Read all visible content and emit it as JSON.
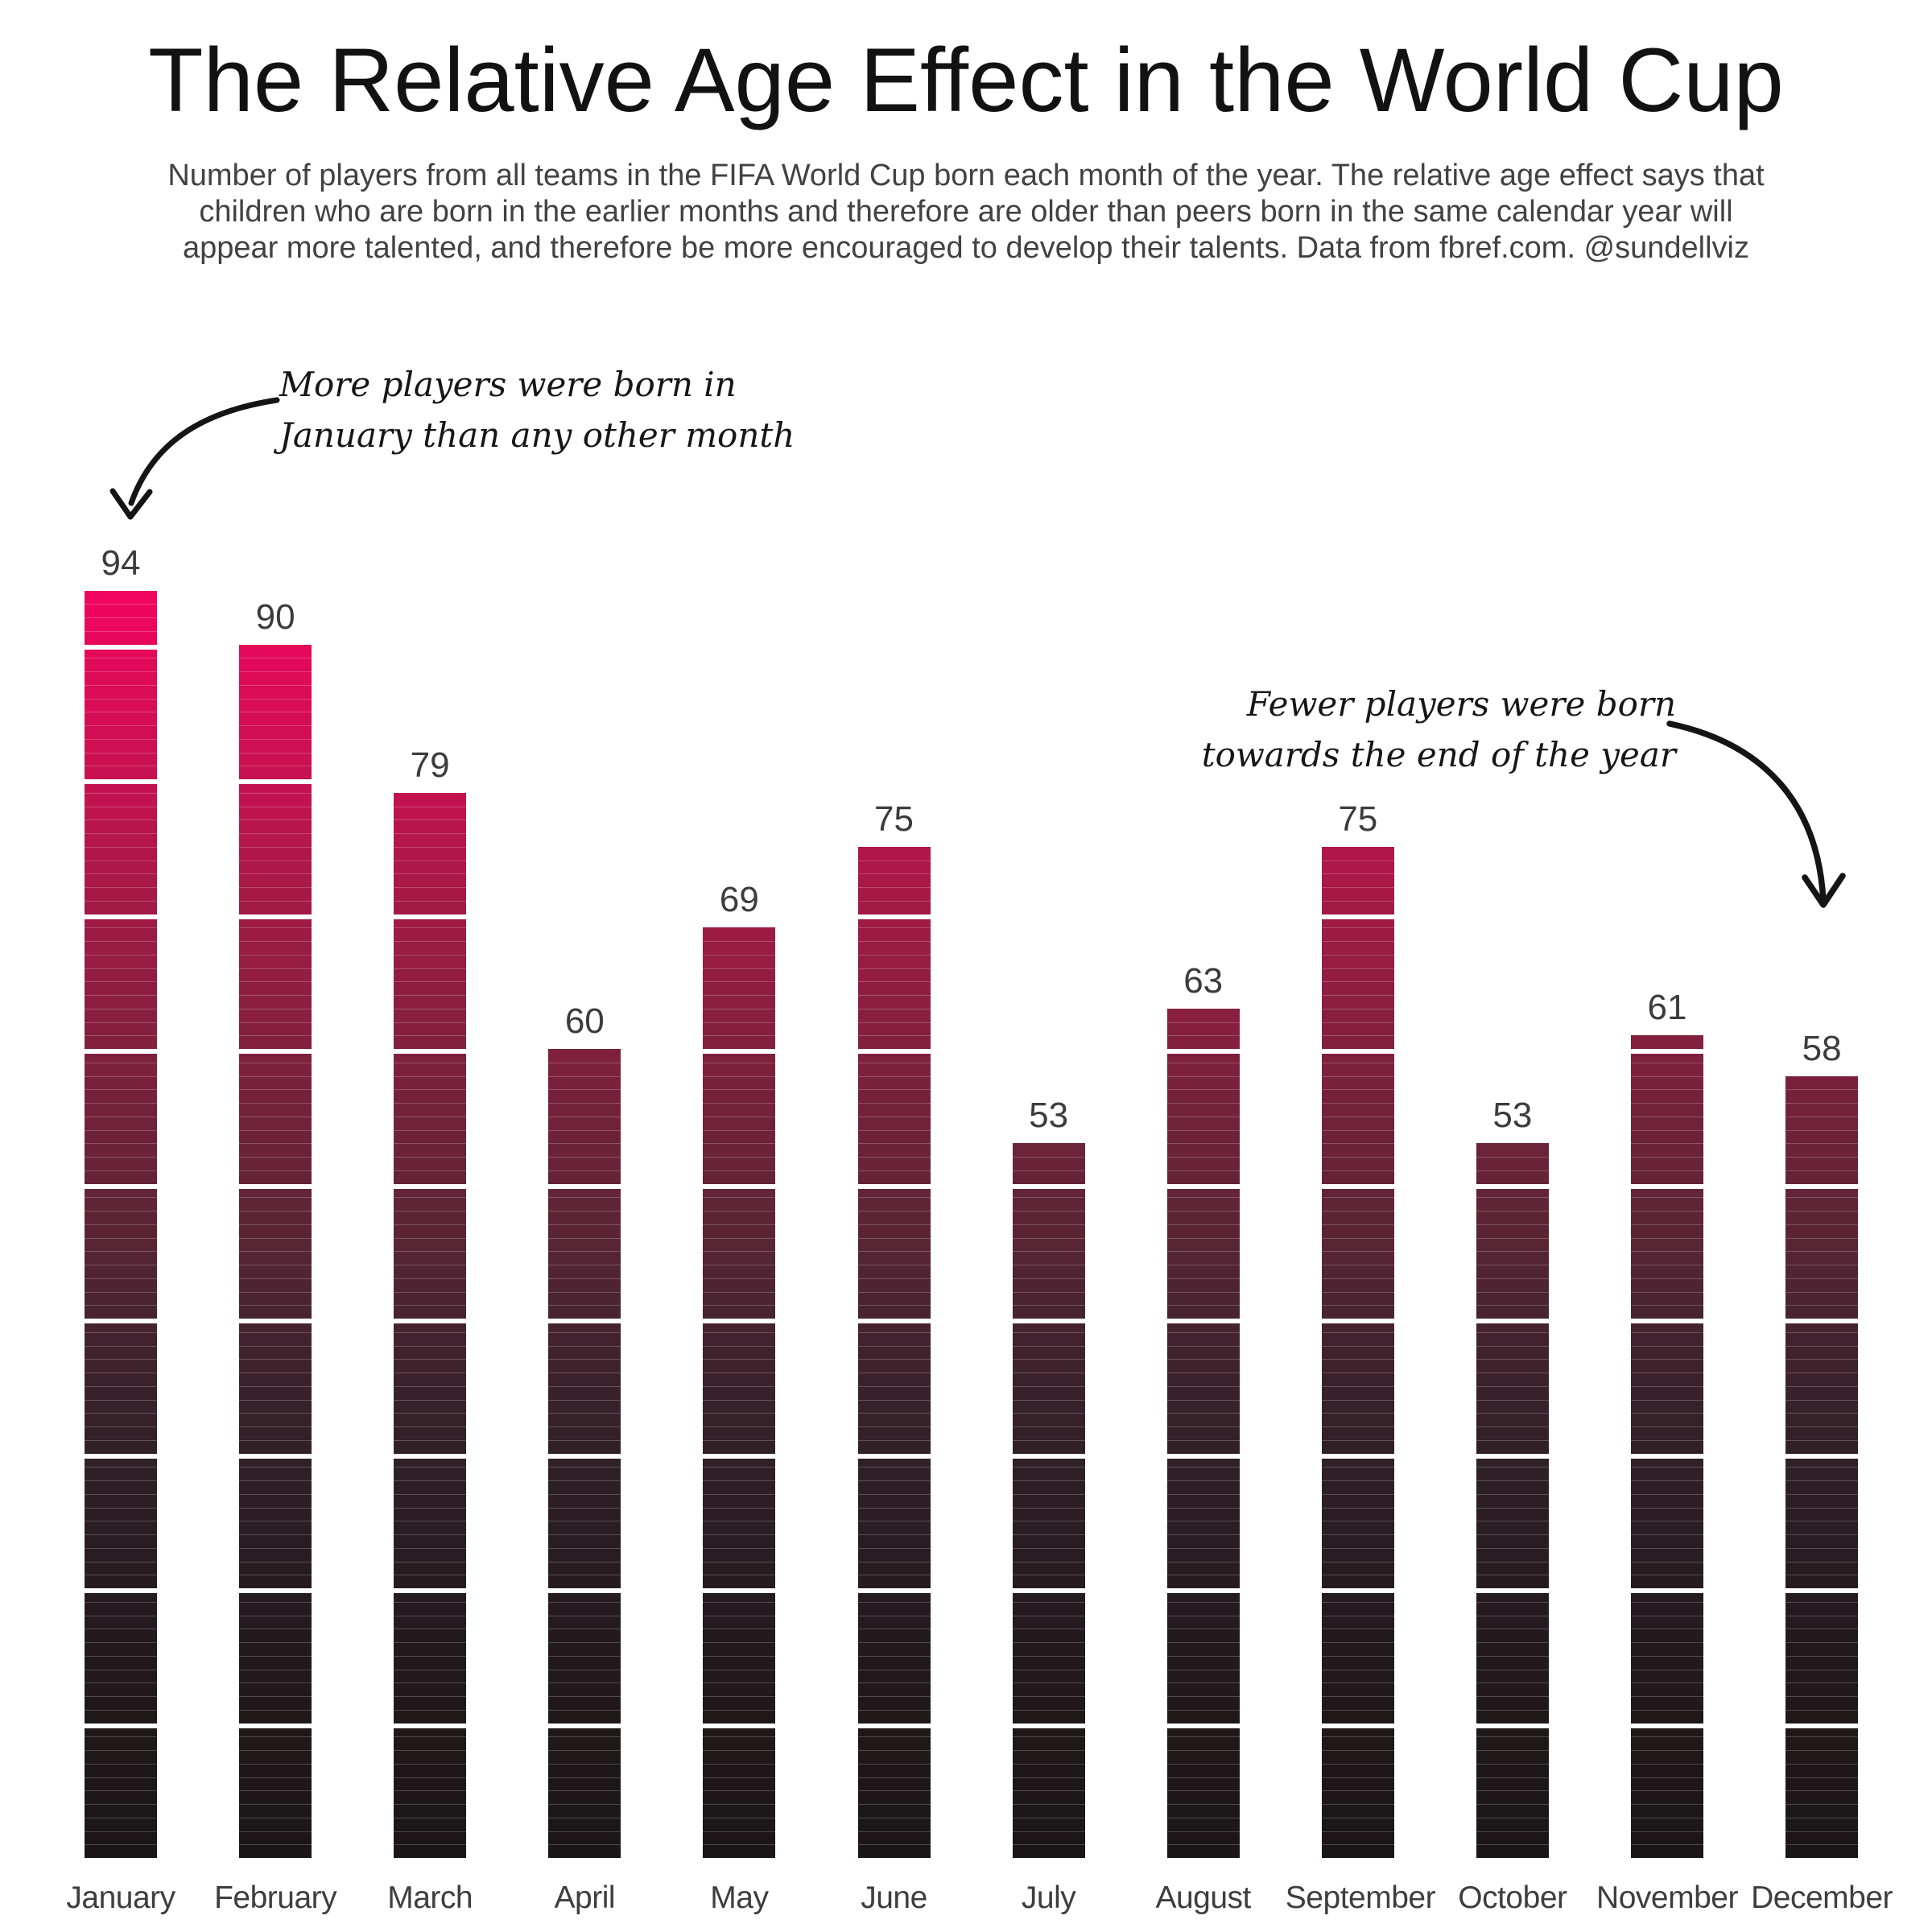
{
  "title": "The Relative Age Effect in the World Cup",
  "subtitle_lines": [
    "Number of players from all teams in the FIFA World Cup born each month of the year. The relative age effect says that",
    "children who are born in the earlier months and therefore are older than peers born in the same calendar year will",
    "appear more talented, and therefore be more encouraged to develop their talents. Data from fbref.com. @sundellviz"
  ],
  "annotations": {
    "left": {
      "lines": [
        "More players were born in",
        "January than any other month"
      ]
    },
    "right": {
      "lines": [
        "Fewer players were born",
        "towards the end of the year"
      ]
    }
  },
  "chart_data": {
    "type": "bar",
    "title": "The Relative Age Effect in the World Cup",
    "categories": [
      "January",
      "February",
      "March",
      "April",
      "May",
      "June",
      "July",
      "August",
      "September",
      "October",
      "November",
      "December"
    ],
    "values": [
      94,
      90,
      79,
      60,
      69,
      75,
      53,
      63,
      75,
      53,
      61,
      58
    ],
    "xlabel": "",
    "ylabel": "",
    "ylim": [
      0,
      94
    ],
    "grid": false,
    "legend": "none",
    "value_labels": true,
    "block_size": 10,
    "block_gap_color": "#ffffff",
    "unit_line_color": "rgba(255,255,255,0.22)",
    "value_label_color": "#3c3c3c",
    "month_label_color": "#3e3e3e",
    "annotation_arrow_color": "#151515",
    "bar_gradient_stops": [
      [
        0,
        "#1b1617"
      ],
      [
        5,
        "#1d1719"
      ],
      [
        10,
        "#1f1819"
      ],
      [
        15,
        "#22191d"
      ],
      [
        20,
        "#261b20"
      ],
      [
        25,
        "#2b1d24"
      ],
      [
        30,
        "#312027"
      ],
      [
        35,
        "#3a212b"
      ],
      [
        40,
        "#46232f"
      ],
      [
        45,
        "#562534"
      ],
      [
        50,
        "#642338"
      ],
      [
        55,
        "#71223b"
      ],
      [
        60,
        "#80203d"
      ],
      [
        65,
        "#911d42"
      ],
      [
        70,
        "#a01a45"
      ],
      [
        75,
        "#b3164b"
      ],
      [
        80,
        "#c61150"
      ],
      [
        85,
        "#d60d54"
      ],
      [
        90,
        "#e5095a"
      ],
      [
        94,
        "#f4045f"
      ]
    ]
  }
}
